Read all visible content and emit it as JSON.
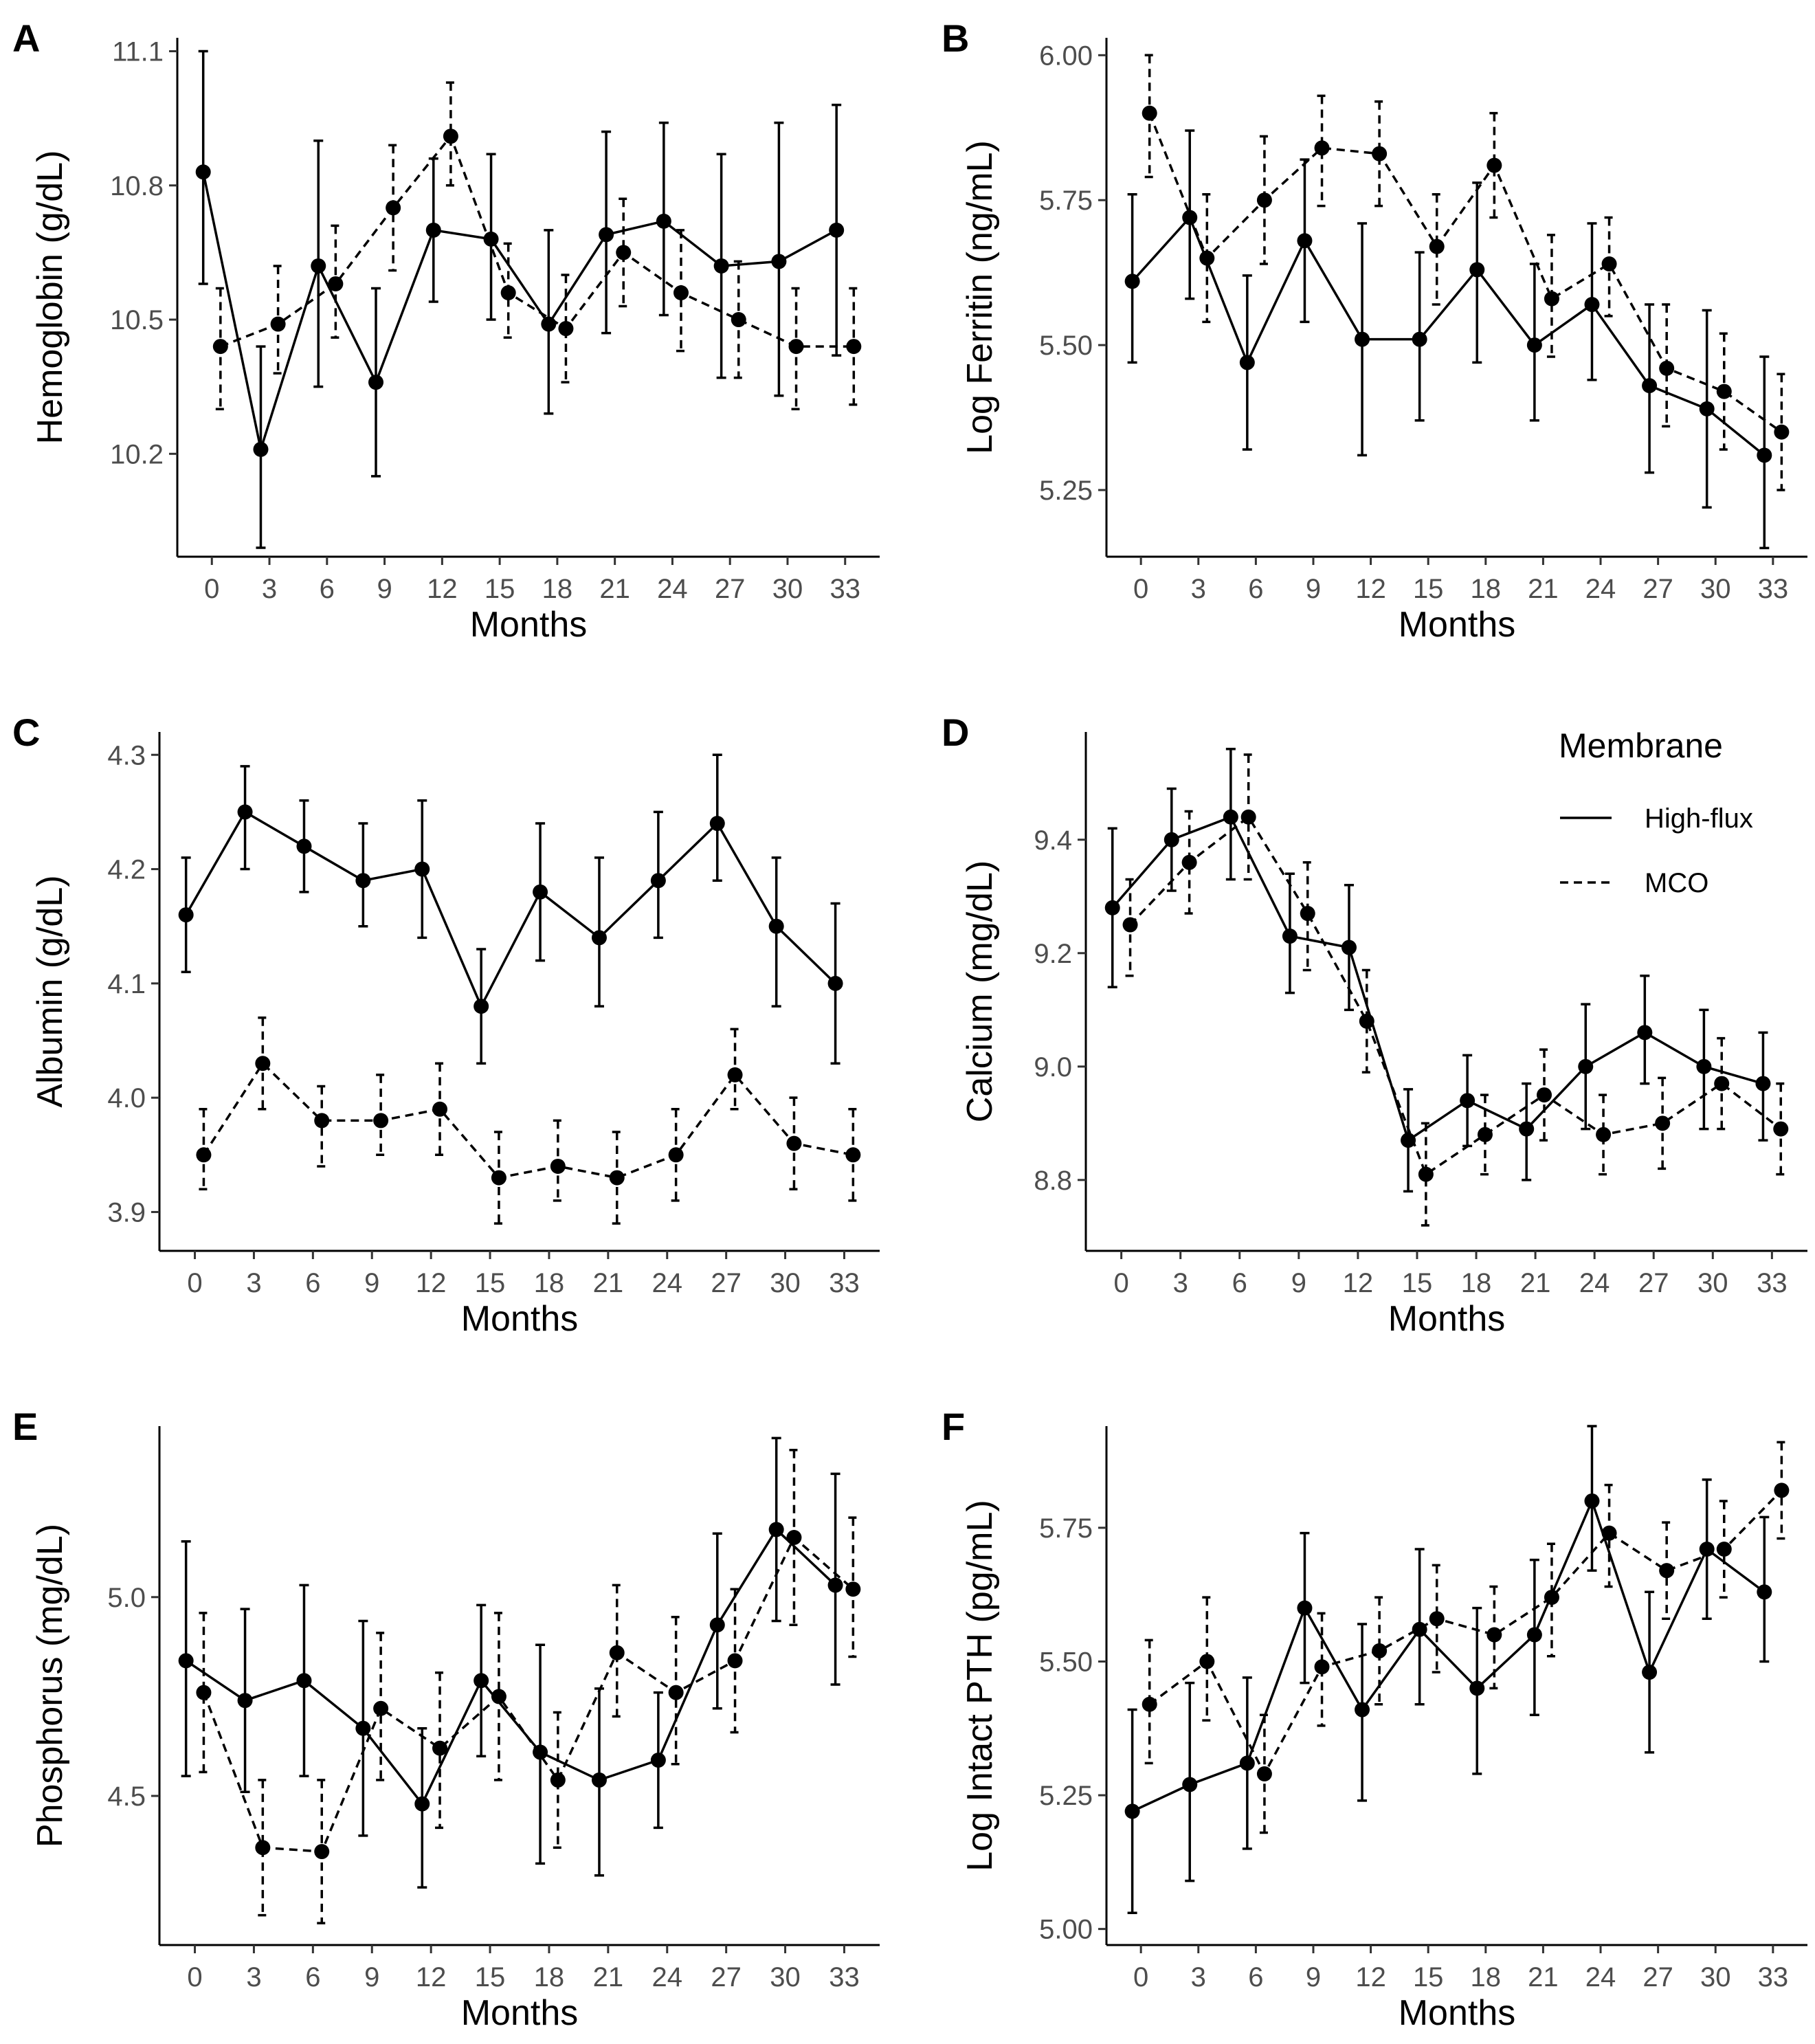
{
  "legend": {
    "title": "Membrane",
    "entries": [
      "High-flux",
      "MCO"
    ]
  },
  "chart_data": [
    {
      "type": "line",
      "panel": "A",
      "xlabel": "Months",
      "ylabel": "Hemoglobin (g/dL)",
      "x": [
        0,
        3,
        6,
        9,
        12,
        15,
        18,
        21,
        24,
        27,
        30,
        33
      ],
      "xlim": [
        -1.8,
        34.8
      ],
      "ylim": [
        9.97,
        11.13
      ],
      "yticks": [
        "10.2",
        "10.5",
        "10.8",
        "11.1"
      ],
      "series": [
        {
          "name": "High-flux",
          "values": [
            10.83,
            10.21,
            10.62,
            10.36,
            10.7,
            10.68,
            10.49,
            10.69,
            10.72,
            10.62,
            10.63,
            10.7
          ],
          "lower": [
            10.58,
            9.99,
            10.35,
            10.15,
            10.54,
            10.5,
            10.29,
            10.47,
            10.51,
            10.37,
            10.33,
            10.42
          ],
          "upper": [
            11.1,
            10.44,
            10.9,
            10.57,
            10.86,
            10.87,
            10.7,
            10.92,
            10.94,
            10.87,
            10.94,
            10.98
          ]
        },
        {
          "name": "MCO",
          "values": [
            10.44,
            10.49,
            10.58,
            10.75,
            10.91,
            10.56,
            10.48,
            10.65,
            10.56,
            10.5,
            10.44,
            10.44
          ],
          "lower": [
            10.3,
            10.38,
            10.46,
            10.61,
            10.8,
            10.46,
            10.36,
            10.53,
            10.43,
            10.37,
            10.3,
            10.31
          ],
          "upper": [
            10.57,
            10.62,
            10.71,
            10.89,
            11.03,
            10.67,
            10.6,
            10.77,
            10.7,
            10.63,
            10.57,
            10.57
          ]
        }
      ]
    },
    {
      "type": "line",
      "panel": "B",
      "xlabel": "Months",
      "ylabel": "Log Ferritin (ng/mL)",
      "x": [
        0,
        3,
        6,
        9,
        12,
        15,
        18,
        21,
        24,
        27,
        30,
        33
      ],
      "xlim": [
        -1.8,
        34.8
      ],
      "ylim": [
        5.135,
        6.03
      ],
      "yticks": [
        "5.25",
        "5.50",
        "5.75",
        "6.00"
      ],
      "series": [
        {
          "name": "High-flux",
          "values": [
            5.61,
            5.72,
            5.47,
            5.68,
            5.51,
            5.51,
            5.63,
            5.5,
            5.57,
            5.43,
            5.39,
            5.31
          ],
          "lower": [
            5.47,
            5.58,
            5.32,
            5.54,
            5.31,
            5.37,
            5.47,
            5.37,
            5.44,
            5.28,
            5.22,
            5.15
          ],
          "upper": [
            5.76,
            5.87,
            5.62,
            5.82,
            5.71,
            5.66,
            5.78,
            5.64,
            5.71,
            5.57,
            5.56,
            5.48
          ]
        },
        {
          "name": "MCO",
          "values": [
            5.9,
            5.65,
            5.75,
            5.84,
            5.83,
            5.67,
            5.81,
            5.58,
            5.64,
            5.46,
            5.42,
            5.35
          ],
          "lower": [
            5.79,
            5.54,
            5.64,
            5.74,
            5.74,
            5.57,
            5.72,
            5.48,
            5.55,
            5.36,
            5.32,
            5.25
          ],
          "upper": [
            6.0,
            5.76,
            5.86,
            5.93,
            5.92,
            5.76,
            5.9,
            5.69,
            5.72,
            5.57,
            5.52,
            5.45
          ]
        }
      ]
    },
    {
      "type": "line",
      "panel": "C",
      "xlabel": "Months",
      "ylabel": "Albumin (g/dL)",
      "x": [
        0,
        3,
        6,
        9,
        12,
        15,
        18,
        21,
        24,
        27,
        30,
        33
      ],
      "xlim": [
        -1.8,
        34.8
      ],
      "ylim": [
        3.866,
        4.32
      ],
      "yticks": [
        "3.9",
        "4.0",
        "4.1",
        "4.2",
        "4.3"
      ],
      "series": [
        {
          "name": "High-flux",
          "values": [
            4.16,
            4.25,
            4.22,
            4.19,
            4.2,
            4.08,
            4.18,
            4.14,
            4.19,
            4.24,
            4.15,
            4.1
          ],
          "lower": [
            4.11,
            4.2,
            4.18,
            4.15,
            4.14,
            4.03,
            4.12,
            4.08,
            4.14,
            4.19,
            4.08,
            4.03
          ],
          "upper": [
            4.21,
            4.29,
            4.26,
            4.24,
            4.26,
            4.13,
            4.24,
            4.21,
            4.25,
            4.3,
            4.21,
            4.17
          ]
        },
        {
          "name": "MCO",
          "values": [
            3.95,
            4.03,
            3.98,
            3.98,
            3.99,
            3.93,
            3.94,
            3.93,
            3.95,
            4.02,
            3.96,
            3.95
          ],
          "lower": [
            3.92,
            3.99,
            3.94,
            3.95,
            3.95,
            3.89,
            3.91,
            3.89,
            3.91,
            3.99,
            3.92,
            3.91
          ],
          "upper": [
            3.99,
            4.07,
            4.01,
            4.02,
            4.03,
            3.97,
            3.98,
            3.97,
            3.99,
            4.06,
            4.0,
            3.99
          ]
        }
      ]
    },
    {
      "type": "line",
      "panel": "D",
      "xlabel": "Months",
      "ylabel": "Calcium (mg/dL)",
      "x": [
        0,
        3,
        6,
        9,
        12,
        15,
        18,
        21,
        24,
        27,
        30,
        33
      ],
      "xlim": [
        -1.8,
        34.8
      ],
      "ylim": [
        8.675,
        9.59
      ],
      "yticks": [
        "8.8",
        "9.0",
        "9.2",
        "9.4"
      ],
      "series": [
        {
          "name": "High-flux",
          "values": [
            9.28,
            9.4,
            9.44,
            9.23,
            9.21,
            8.87,
            8.94,
            8.89,
            9.0,
            9.06,
            9.0,
            8.97
          ],
          "lower": [
            9.14,
            9.31,
            9.33,
            9.13,
            9.1,
            8.78,
            8.86,
            8.8,
            8.89,
            8.97,
            8.89,
            8.87
          ],
          "upper": [
            9.42,
            9.49,
            9.56,
            9.34,
            9.32,
            8.96,
            9.02,
            8.97,
            9.11,
            9.16,
            9.1,
            9.06
          ]
        },
        {
          "name": "MCO",
          "values": [
            9.25,
            9.36,
            9.44,
            9.27,
            9.08,
            8.81,
            8.88,
            8.95,
            8.88,
            8.9,
            8.97,
            8.89
          ],
          "lower": [
            9.16,
            9.27,
            9.33,
            9.17,
            8.99,
            8.72,
            8.81,
            8.87,
            8.81,
            8.82,
            8.89,
            8.81
          ],
          "upper": [
            9.33,
            9.45,
            9.55,
            9.36,
            9.17,
            8.9,
            8.95,
            9.03,
            8.95,
            8.98,
            9.05,
            8.97
          ]
        }
      ]
    },
    {
      "type": "line",
      "panel": "E",
      "xlabel": "Months",
      "ylabel": "Phosphorus (mg/dL)",
      "x": [
        0,
        3,
        6,
        9,
        12,
        15,
        18,
        21,
        24,
        27,
        30,
        33
      ],
      "xlim": [
        -1.8,
        34.8
      ],
      "ylim": [
        4.125,
        5.43
      ],
      "yticks": [
        "4.5",
        "5.0"
      ],
      "series": [
        {
          "name": "High-flux",
          "values": [
            4.84,
            4.74,
            4.79,
            4.67,
            4.48,
            4.79,
            4.61,
            4.54,
            4.59,
            4.93,
            5.17,
            5.03
          ],
          "lower": [
            4.55,
            4.51,
            4.55,
            4.4,
            4.27,
            4.6,
            4.33,
            4.3,
            4.42,
            4.72,
            4.94,
            4.78
          ],
          "upper": [
            5.14,
            4.97,
            5.03,
            4.94,
            4.67,
            4.98,
            4.88,
            4.77,
            4.76,
            5.16,
            5.4,
            5.31
          ]
        },
        {
          "name": "MCO",
          "values": [
            4.76,
            4.37,
            4.36,
            4.72,
            4.62,
            4.75,
            4.54,
            4.86,
            4.76,
            4.84,
            5.15,
            5.02
          ],
          "lower": [
            4.56,
            4.2,
            4.18,
            4.54,
            4.42,
            4.54,
            4.37,
            4.7,
            4.58,
            4.66,
            4.93,
            4.85
          ],
          "upper": [
            4.96,
            4.54,
            4.54,
            4.91,
            4.81,
            4.96,
            4.71,
            5.03,
            4.95,
            5.02,
            5.37,
            5.2
          ]
        }
      ]
    },
    {
      "type": "line",
      "panel": "F",
      "xlabel": "Months",
      "ylabel": "Log Intact PTH (pg/mL)",
      "x": [
        0,
        3,
        6,
        9,
        12,
        15,
        18,
        21,
        24,
        27,
        30,
        33
      ],
      "xlim": [
        -1.8,
        34.8
      ],
      "ylim": [
        4.97,
        5.94
      ],
      "yticks": [
        "5.00",
        "5.25",
        "5.50",
        "5.75"
      ],
      "series": [
        {
          "name": "High-flux",
          "values": [
            5.22,
            5.27,
            5.31,
            5.6,
            5.41,
            5.56,
            5.45,
            5.55,
            5.8,
            5.48,
            5.71,
            5.63
          ],
          "lower": [
            5.03,
            5.09,
            5.15,
            5.46,
            5.24,
            5.42,
            5.29,
            5.4,
            5.67,
            5.33,
            5.58,
            5.5
          ],
          "upper": [
            5.41,
            5.46,
            5.47,
            5.74,
            5.57,
            5.71,
            5.6,
            5.69,
            5.94,
            5.63,
            5.84,
            5.77
          ]
        },
        {
          "name": "MCO",
          "values": [
            5.42,
            5.5,
            5.29,
            5.49,
            5.52,
            5.58,
            5.55,
            5.62,
            5.74,
            5.67,
            5.71,
            5.82
          ],
          "lower": [
            5.31,
            5.39,
            5.18,
            5.38,
            5.42,
            5.48,
            5.45,
            5.51,
            5.64,
            5.58,
            5.62,
            5.73
          ],
          "upper": [
            5.54,
            5.62,
            5.4,
            5.59,
            5.62,
            5.68,
            5.64,
            5.72,
            5.83,
            5.76,
            5.8,
            5.91
          ]
        }
      ]
    }
  ]
}
